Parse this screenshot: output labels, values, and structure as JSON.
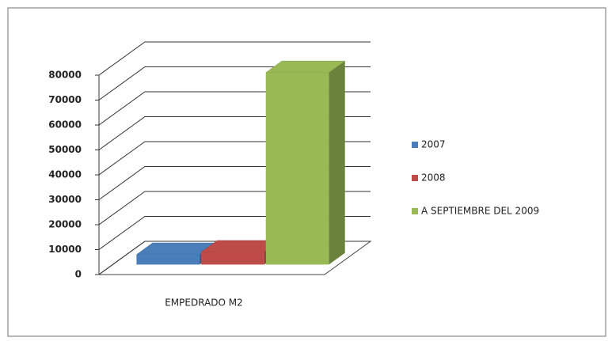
{
  "chart_data": {
    "type": "bar3d",
    "categories": [
      "EMPEDRADO M2"
    ],
    "series": [
      {
        "name": "2007",
        "color": "#4a7ebb",
        "values": [
          4000
        ]
      },
      {
        "name": "2008",
        "color": "#be4b48",
        "values": [
          5000
        ]
      },
      {
        "name": "A SEPTIEMBRE DEL 2009",
        "color": "#98b954",
        "values": [
          77000
        ]
      }
    ],
    "ylim": [
      0,
      80000
    ],
    "yticks": [
      0,
      10000,
      20000,
      30000,
      40000,
      50000,
      60000,
      70000,
      80000
    ],
    "grid": true,
    "legend": "right"
  }
}
